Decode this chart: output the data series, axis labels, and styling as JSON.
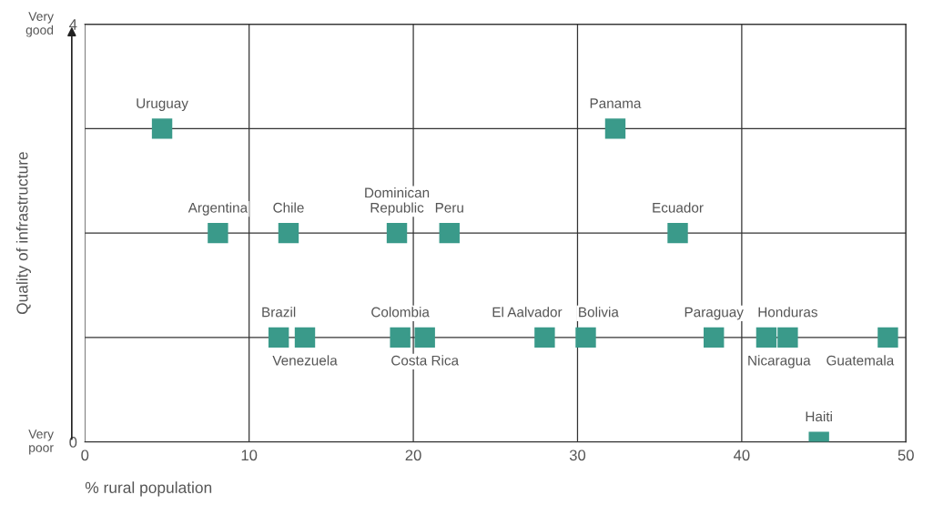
{
  "chart_data": {
    "type": "scatter",
    "xlabel": "% rural population",
    "ylabel": "Quality of infrastructure",
    "x": [
      4.7,
      32.3,
      8.1,
      12.4,
      19.0,
      22.2,
      36.1,
      11.8,
      13.4,
      19.2,
      20.7,
      28.0,
      30.5,
      38.3,
      41.5,
      42.8,
      48.9,
      44.7
    ],
    "series": [
      {
        "color": "#3a9a8a",
        "values": [
          3,
          3,
          2,
          2,
          2,
          2,
          2,
          1,
          1,
          1,
          1,
          1,
          1,
          1,
          1,
          1,
          1,
          0
        ]
      }
    ],
    "annotations": [
      {
        "text": "Uruguay",
        "x": 4.7,
        "y": 3
      },
      {
        "text": "Panama",
        "x": 32.3,
        "y": 3
      },
      {
        "text": "Argentina",
        "x": 8.1,
        "y": 2
      },
      {
        "text": "Chile",
        "x": 12.4,
        "y": 2
      },
      {
        "text": "Dominican\nRepublic",
        "x": 19.0,
        "y": 2
      },
      {
        "text": "Peru",
        "x": 22.2,
        "y": 2
      },
      {
        "text": "Ecuador",
        "x": 36.1,
        "y": 2
      },
      {
        "text": "Brazil",
        "x": 11.8,
        "y": 1
      },
      {
        "text": "Venezuela",
        "x": 13.4,
        "y": 1
      },
      {
        "text": "Colombia",
        "x": 19.2,
        "y": 1
      },
      {
        "text": "Costa Rica",
        "x": 20.7,
        "y": 1
      },
      {
        "text": "El Aalvador",
        "x": 28.0,
        "y": 1
      },
      {
        "text": "Bolivia",
        "x": 30.5,
        "y": 1
      },
      {
        "text": "Paraguay",
        "x": 38.3,
        "y": 1
      },
      {
        "text": "Nicaragua",
        "x": 41.5,
        "y": 1
      },
      {
        "text": "Honduras",
        "x": 42.8,
        "y": 1
      },
      {
        "text": "Guatemala",
        "x": 48.9,
        "y": 1
      },
      {
        "text": "Haiti",
        "x": 44.7,
        "y": 0
      },
      "Very\ngood",
      "Very\npoor"
    ],
    "xlim": [
      0,
      50
    ],
    "xticks": [
      0,
      10,
      20,
      30,
      40,
      50
    ],
    "ylim": [
      0,
      4
    ],
    "yticks": [
      0,
      {
        "value": 1,
        "label": null
      },
      {
        "value": 2,
        "label": null
      },
      {
        "value": 3,
        "label": null
      },
      4
    ],
    "grid": true,
    "marker": "square",
    "legend": false
  }
}
